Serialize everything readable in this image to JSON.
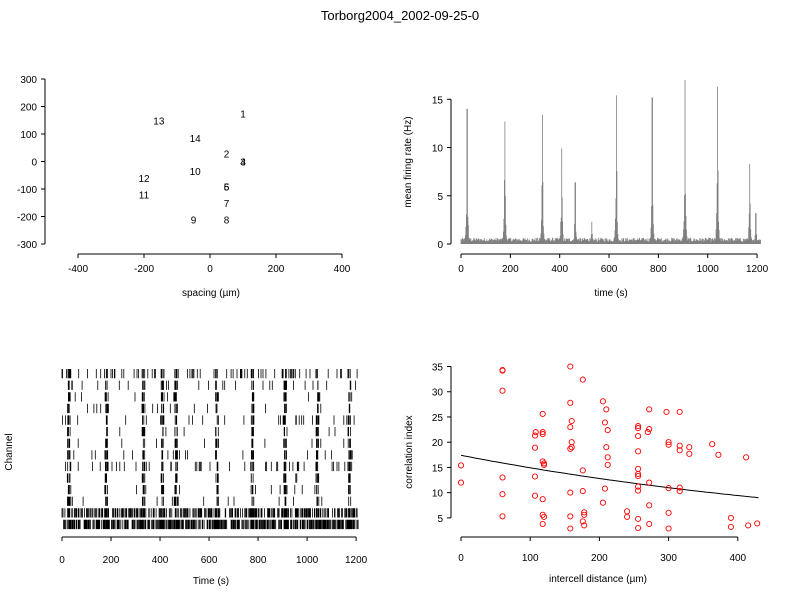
{
  "title": "Torborg2004_2002-09-25-0",
  "chart_data": [
    {
      "type": "scatter",
      "panel": "electrode layout",
      "xlabel": "spacing (µm)",
      "ylabel": "",
      "xlim": [
        -500,
        500
      ],
      "ylim": [
        -300,
        300
      ],
      "xticks": [
        -400,
        -200,
        0,
        200,
        400
      ],
      "yticks": [
        -300,
        -200,
        -100,
        0,
        100,
        200,
        300
      ],
      "labels": [
        {
          "text": "1",
          "x": 100,
          "y": 175
        },
        {
          "text": "13",
          "x": -155,
          "y": 150
        },
        {
          "text": "14",
          "x": -45,
          "y": 85
        },
        {
          "text": "2",
          "x": 50,
          "y": 30
        },
        {
          "text": "3",
          "x": 100,
          "y": 0
        },
        {
          "text": "4",
          "x": 100,
          "y": 0
        },
        {
          "text": "10",
          "x": -45,
          "y": -35
        },
        {
          "text": "12",
          "x": -200,
          "y": -60
        },
        {
          "text": "11",
          "x": -200,
          "y": -120
        },
        {
          "text": "5",
          "x": 50,
          "y": -90
        },
        {
          "text": "6",
          "x": 50,
          "y": -90
        },
        {
          "text": "7",
          "x": 50,
          "y": -150
        },
        {
          "text": "9",
          "x": -50,
          "y": -210
        },
        {
          "text": "8",
          "x": 50,
          "y": -210
        }
      ]
    },
    {
      "type": "line",
      "panel": "mean firing rate",
      "xlabel": "time (s)",
      "ylabel": "mean firing rate (Hz)",
      "xlim": [
        0,
        1220
      ],
      "ylim": [
        0,
        17
      ],
      "xticks": [
        0,
        200,
        400,
        600,
        800,
        1000,
        1200
      ],
      "yticks": [
        0,
        5,
        10,
        15
      ],
      "color": "#808080",
      "baseline": 0.5,
      "peaks": [
        {
          "x": 25,
          "y": 14.0
        },
        {
          "x": 178,
          "y": 12.7
        },
        {
          "x": 330,
          "y": 13.4
        },
        {
          "x": 408,
          "y": 9.9
        },
        {
          "x": 463,
          "y": 6.4
        },
        {
          "x": 530,
          "y": 2.3
        },
        {
          "x": 630,
          "y": 15.4
        },
        {
          "x": 775,
          "y": 15.2
        },
        {
          "x": 908,
          "y": 17.0
        },
        {
          "x": 1040,
          "y": 16.3
        },
        {
          "x": 1170,
          "y": 8.3
        },
        {
          "x": 1195,
          "y": 3.2
        }
      ]
    },
    {
      "type": "raster",
      "panel": "spike raster",
      "xlabel": "Time (s)",
      "ylabel": "Channel",
      "xlim": [
        0,
        1220
      ],
      "xticks": [
        0,
        200,
        400,
        600,
        800,
        1000,
        1200
      ],
      "n_channels": 14,
      "bursts": [
        25,
        178,
        330,
        408,
        463,
        630,
        775,
        908,
        1040,
        1170
      ]
    },
    {
      "type": "scatter",
      "panel": "correlation index vs distance",
      "xlabel": "intercell distance (µm)",
      "ylabel": "correlation index",
      "xlim": [
        0,
        435
      ],
      "ylim": [
        2,
        35.5
      ],
      "xticks": [
        0,
        100,
        200,
        300,
        400
      ],
      "yticks": [
        5,
        10,
        15,
        20,
        25,
        30,
        35
      ],
      "point_color": "#ff0000",
      "fit_curve": {
        "x": [
          0,
          430
        ],
        "y": [
          17.4,
          9.0
        ]
      },
      "points": [
        [
          0,
          15.4
        ],
        [
          0,
          12.0
        ],
        [
          60,
          34.3
        ],
        [
          60,
          34.2
        ],
        [
          60,
          30.2
        ],
        [
          60,
          13.0
        ],
        [
          60,
          9.7
        ],
        [
          60,
          5.3
        ],
        [
          107,
          21.3
        ],
        [
          108,
          22.0
        ],
        [
          107,
          18.9
        ],
        [
          107,
          13.2
        ],
        [
          107,
          9.4
        ],
        [
          118,
          25.6
        ],
        [
          118,
          22.0
        ],
        [
          118,
          21.6
        ],
        [
          118,
          16.2
        ],
        [
          120,
          15.5
        ],
        [
          120,
          15.8
        ],
        [
          118,
          8.7
        ],
        [
          118,
          5.6
        ],
        [
          120,
          5.2
        ],
        [
          118,
          3.8
        ],
        [
          158,
          35.0
        ],
        [
          158,
          27.8
        ],
        [
          160,
          24.2
        ],
        [
          158,
          23.0
        ],
        [
          160,
          20.0
        ],
        [
          160,
          19.0
        ],
        [
          158,
          18.7
        ],
        [
          158,
          10.0
        ],
        [
          158,
          5.3
        ],
        [
          158,
          2.9
        ],
        [
          176,
          32.4
        ],
        [
          176,
          14.4
        ],
        [
          176,
          10.3
        ],
        [
          178,
          6.1
        ],
        [
          178,
          5.6
        ],
        [
          176,
          4.3
        ],
        [
          178,
          3.5
        ],
        [
          205,
          28.1
        ],
        [
          210,
          26.5
        ],
        [
          208,
          23.9
        ],
        [
          212,
          22.4
        ],
        [
          210,
          19.0
        ],
        [
          212,
          17.0
        ],
        [
          212,
          15.5
        ],
        [
          208,
          10.8
        ],
        [
          205,
          8.0
        ],
        [
          240,
          6.3
        ],
        [
          240,
          5.2
        ],
        [
          256,
          23.2
        ],
        [
          256,
          22.8
        ],
        [
          256,
          21.2
        ],
        [
          256,
          18.2
        ],
        [
          256,
          14.7
        ],
        [
          256,
          13.7
        ],
        [
          256,
          13.3
        ],
        [
          256,
          11.2
        ],
        [
          256,
          10.4
        ],
        [
          256,
          4.8
        ],
        [
          256,
          3.0
        ],
        [
          272,
          26.5
        ],
        [
          272,
          22.6
        ],
        [
          270,
          22.0
        ],
        [
          272,
          12.0
        ],
        [
          272,
          7.5
        ],
        [
          272,
          3.8
        ],
        [
          297,
          26.0
        ],
        [
          300,
          20.0
        ],
        [
          300,
          19.5
        ],
        [
          300,
          10.9
        ],
        [
          300,
          6.0
        ],
        [
          300,
          2.9
        ],
        [
          316,
          26.0
        ],
        [
          316,
          19.3
        ],
        [
          316,
          18.4
        ],
        [
          316,
          11.0
        ],
        [
          316,
          10.3
        ],
        [
          330,
          19.0
        ],
        [
          330,
          17.7
        ],
        [
          363,
          19.6
        ],
        [
          372,
          17.5
        ],
        [
          390,
          5.0
        ],
        [
          390,
          3.2
        ],
        [
          412,
          17.0
        ],
        [
          415,
          3.5
        ],
        [
          428,
          3.9
        ]
      ]
    }
  ]
}
